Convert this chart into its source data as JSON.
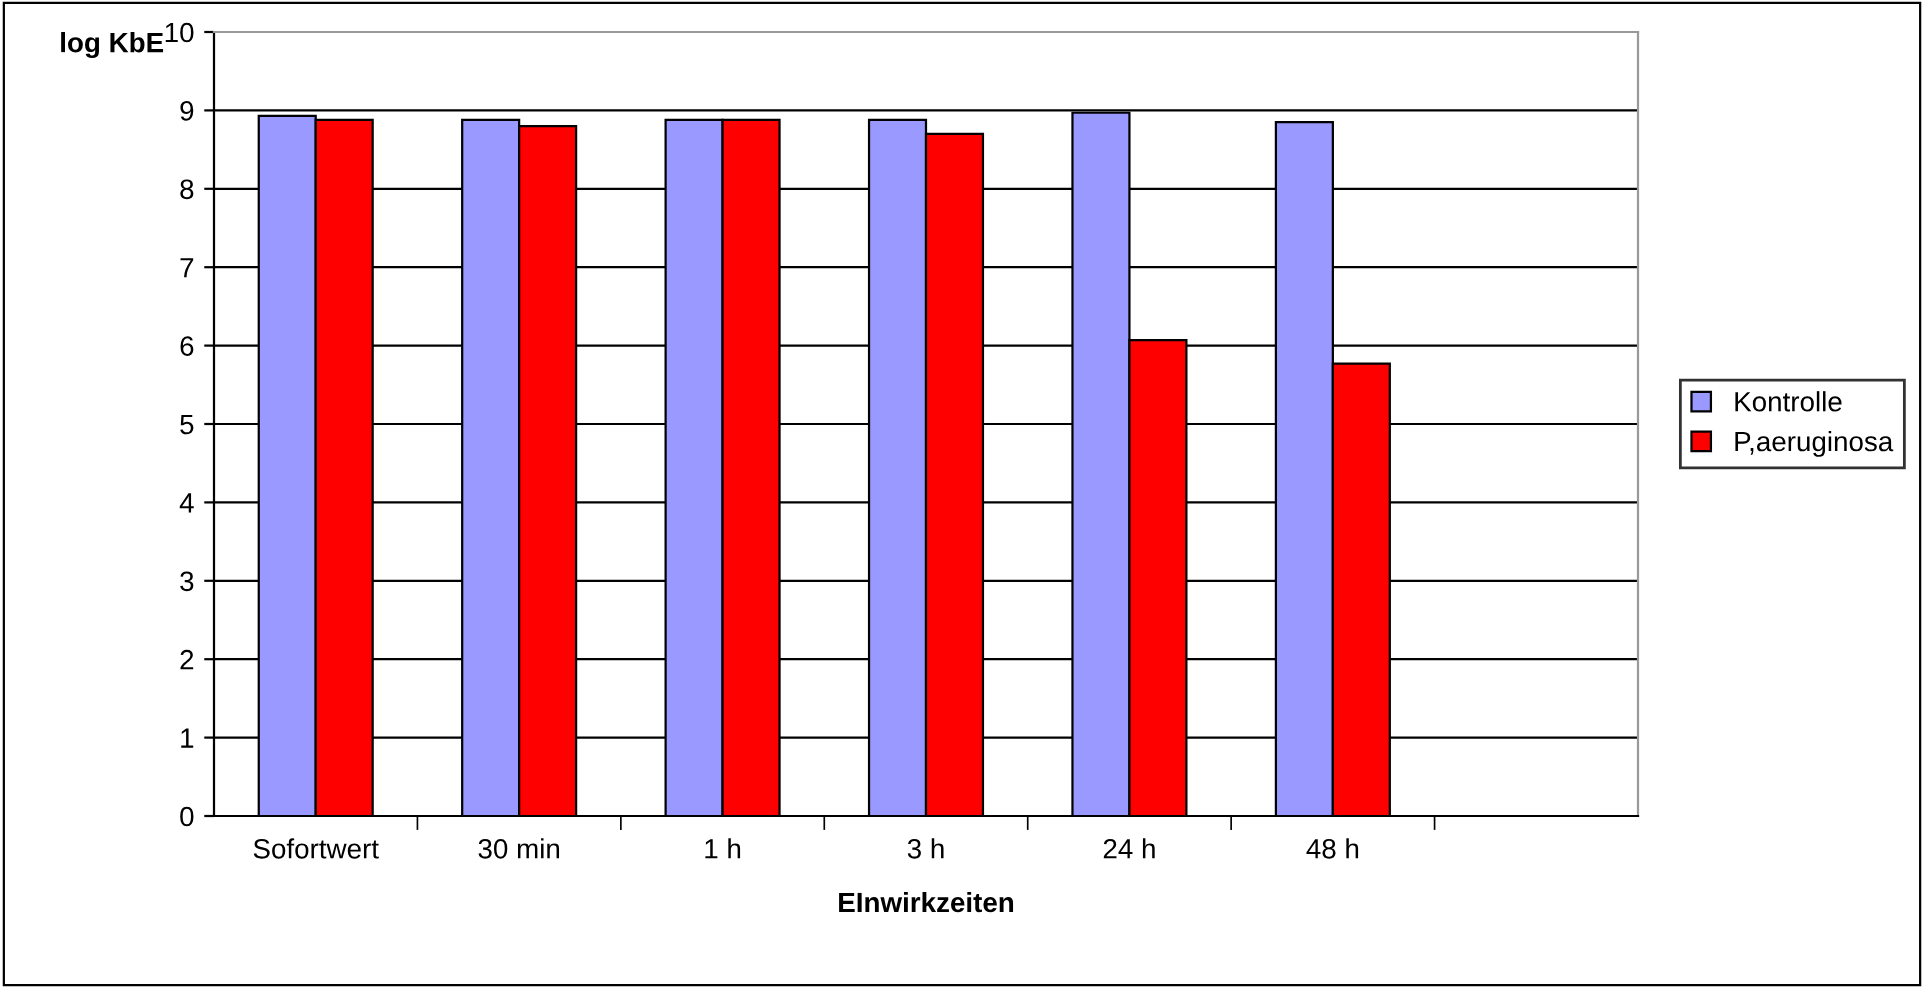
{
  "chart_data": {
    "type": "bar",
    "xlabel": "EInwirkzeiten",
    "ylabel": "log KbE",
    "categories": [
      "Sofortwert",
      "30 min",
      "1 h",
      "3 h",
      "24 h",
      "48 h",
      null
    ],
    "series": [
      {
        "name": "Kontrolle",
        "color": "#9999ff",
        "values": [
          8.93,
          8.88,
          8.88,
          8.88,
          8.97,
          8.85,
          null
        ]
      },
      {
        "name": "P,aeruginosa",
        "color": "#ff0000",
        "values": [
          8.88,
          8.8,
          8.88,
          8.7,
          6.07,
          5.77,
          null
        ]
      }
    ],
    "ylim": [
      0,
      10
    ],
    "yticks": [
      0,
      1,
      2,
      3,
      4,
      5,
      6,
      7,
      8,
      9,
      10
    ],
    "grid": "y",
    "legend": "right"
  }
}
